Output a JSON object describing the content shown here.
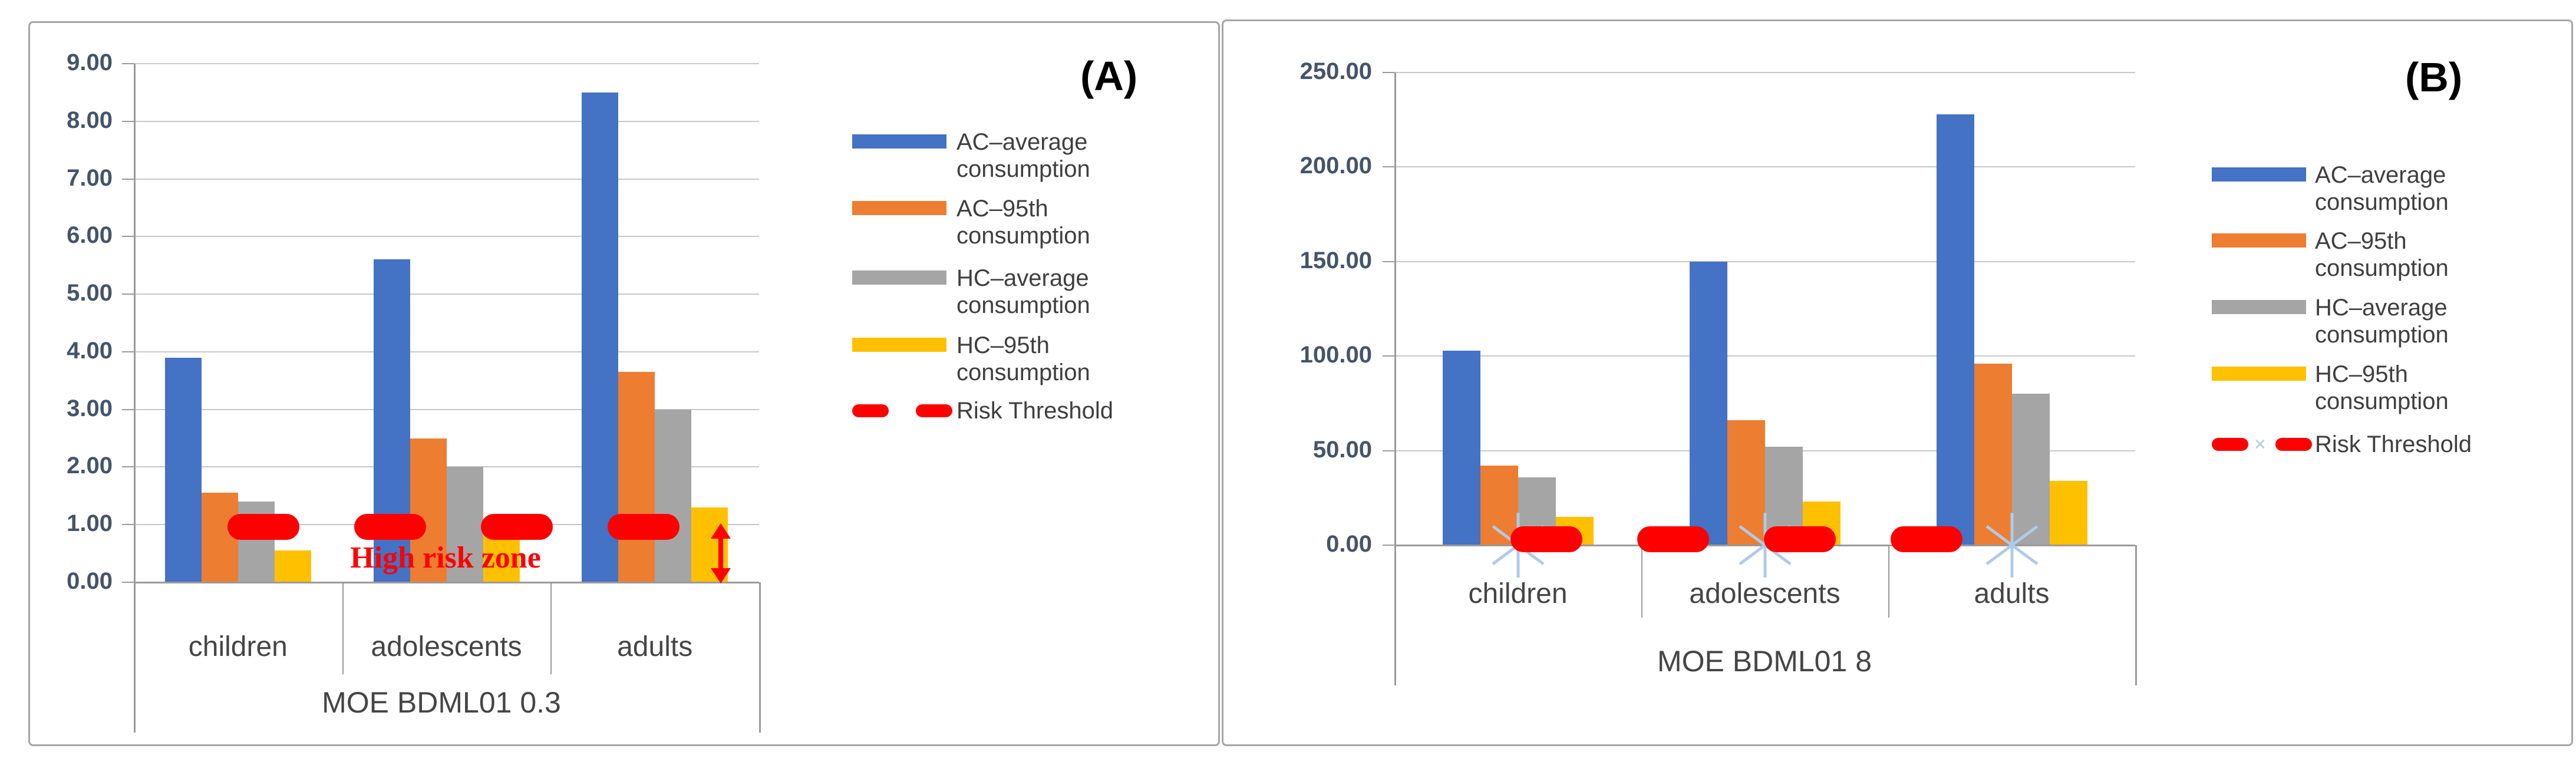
{
  "figure": {
    "background": "#ffffff",
    "panel_border_color": "#a6a6a6",
    "gridline_color": "#c8c8c8",
    "axis_color": "#9a9a9a",
    "tick_label_color": "#44546a",
    "category_label_color": "#454545",
    "threshold_color": "#ff0000",
    "x_marker_color": "#aecbea"
  },
  "chart_data": [
    {
      "type": "bar",
      "panel_label": "(A)",
      "title": "MOE BDML01 0.3",
      "categories": [
        "children",
        "adolescents",
        "adults"
      ],
      "series": [
        {
          "name": "AC–average consumption",
          "color": "#4472c4",
          "values": [
            3.9,
            5.6,
            8.5
          ]
        },
        {
          "name": "AC–95th consumption",
          "color": "#ed7d31",
          "values": [
            1.55,
            2.5,
            3.65
          ]
        },
        {
          "name": "HC–average consumption",
          "color": "#a5a5a5",
          "values": [
            1.4,
            2.0,
            3.0
          ]
        },
        {
          "name": "HC–95th consumption",
          "color": "#ffc000",
          "values": [
            0.55,
            1.0,
            1.3
          ]
        }
      ],
      "risk_threshold": 1.0,
      "threshold_label": "Risk Threshold",
      "ylim": [
        0,
        9
      ],
      "ytick_step": 1,
      "yticks": [
        "9.00",
        "8.00",
        "7.00",
        "6.00",
        "5.00",
        "4.00",
        "3.00",
        "2.00",
        "1.00",
        "0.00"
      ],
      "grid": true,
      "legend_position": "right",
      "annotations": {
        "high_risk_zone": "High risk zone",
        "arrow": "red double-headed vertical arrow from risk threshold line down to x-axis beside adults HC–95th bar"
      }
    },
    {
      "type": "bar",
      "panel_label": "(B)",
      "title": "MOE BDML01 8",
      "categories": [
        "children",
        "adolescents",
        "adults"
      ],
      "series": [
        {
          "name": "AC–average consumption",
          "color": "#4472c4",
          "values": [
            103,
            150,
            228
          ]
        },
        {
          "name": "AC–95th consumption",
          "color": "#ed7d31",
          "values": [
            42,
            66,
            96
          ]
        },
        {
          "name": "HC–average consumption",
          "color": "#a5a5a5",
          "values": [
            36,
            52,
            80
          ]
        },
        {
          "name": "HC–95th consumption",
          "color": "#ffc000",
          "values": [
            15,
            23,
            34
          ]
        }
      ],
      "risk_threshold": 4,
      "threshold_label": "Risk Threshold",
      "ylim": [
        0,
        250
      ],
      "ytick_step": 50,
      "yticks": [
        "250.00",
        "200.00",
        "150.00",
        "100.00",
        "50.00",
        "0.00"
      ],
      "grid": true,
      "legend_position": "right",
      "x_markers": "light-blue asterisk markers on threshold line at each category center"
    }
  ]
}
